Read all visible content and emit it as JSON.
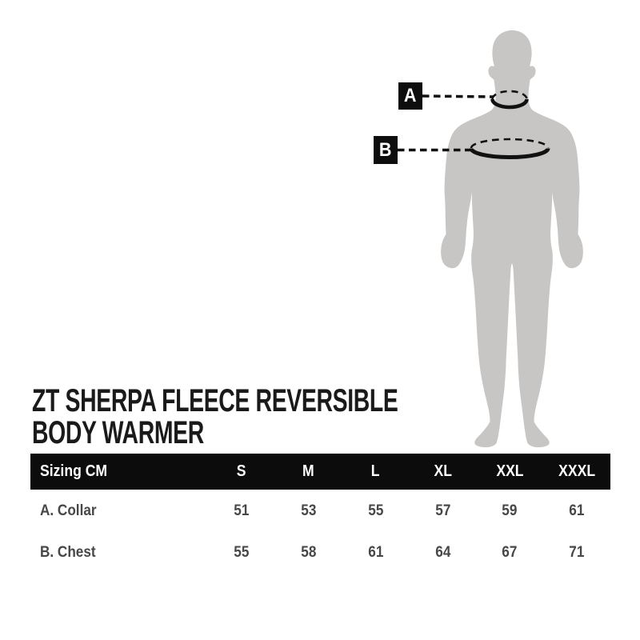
{
  "product": {
    "title_line1": "ZT SHERPA FLEECE REVERSIBLE",
    "title_line2": "BODY WARMER"
  },
  "diagram": {
    "figure": "male-body-silhouette-front",
    "marker_a": {
      "label": "A",
      "measures": "collar circumference at neck"
    },
    "marker_b": {
      "label": "B",
      "measures": "chest circumference"
    }
  },
  "size_chart": {
    "header_label": "Sizing CM",
    "sizes": [
      "S",
      "M",
      "L",
      "XL",
      "XXL",
      "XXXL"
    ],
    "rows": [
      {
        "label": "A. Collar",
        "values": [
          "51",
          "53",
          "55",
          "57",
          "59",
          "61"
        ]
      },
      {
        "label": "B. Chest",
        "values": [
          "55",
          "58",
          "61",
          "64",
          "67",
          "71"
        ]
      }
    ]
  },
  "chart_data": {
    "type": "table",
    "title": "ZT Sherpa Fleece Reversible Body Warmer - Sizing CM",
    "columns": [
      "Sizing CM",
      "S",
      "M",
      "L",
      "XL",
      "XXL",
      "XXXL"
    ],
    "rows": [
      [
        "A. Collar",
        51,
        53,
        55,
        57,
        59,
        61
      ],
      [
        "B. Chest",
        55,
        58,
        61,
        64,
        67,
        71
      ]
    ]
  },
  "colors": {
    "background": "#ffffff",
    "figure_gray": "#c7c6c4",
    "ink_black": "#0d0d0d",
    "title_text": "#1a1a1a",
    "table_row_text": "#474747",
    "header_text": "#ffffff"
  }
}
